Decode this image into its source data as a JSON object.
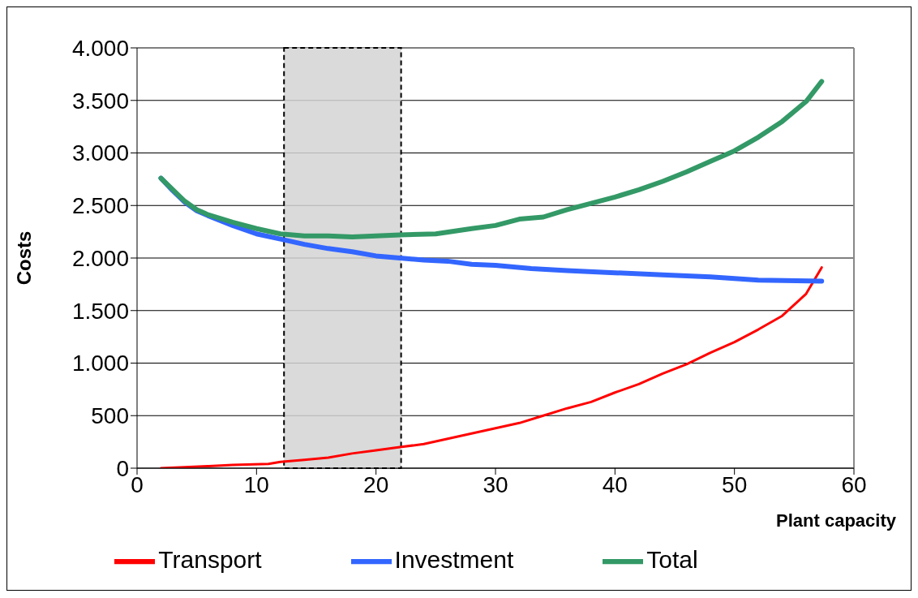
{
  "chart_data": {
    "type": "line",
    "xlabel": "Plant capacity",
    "ylabel": "Costs",
    "xlim": [
      0,
      60
    ],
    "xticks": [
      0,
      10,
      20,
      30,
      40,
      50,
      60
    ],
    "ylim": [
      0,
      4000
    ],
    "yticks": [
      {
        "value": 0,
        "label": "0"
      },
      {
        "value": 500,
        "label": "500"
      },
      {
        "value": 1000,
        "label": "1.000"
      },
      {
        "value": 1500,
        "label": "1.500"
      },
      {
        "value": 2000,
        "label": "2.000"
      },
      {
        "value": 2500,
        "label": "2.500"
      },
      {
        "value": 3000,
        "label": "3.000"
      },
      {
        "value": 3500,
        "label": "3.500"
      },
      {
        "value": 4000,
        "label": "4.000"
      }
    ],
    "grid": "y",
    "legend": "bottom",
    "marker": "none",
    "line_style": "solid",
    "bands": [
      {
        "axis": "x",
        "from": 12.3,
        "to": 22.1,
        "color": "#d4d4d4"
      }
    ],
    "series": [
      {
        "name": "Transport",
        "color": "#ff0000",
        "x": [
          2,
          4,
          6,
          8,
          11,
          12,
          14,
          16,
          18,
          20,
          22,
          24,
          26,
          28,
          30,
          32,
          34,
          36,
          38,
          40,
          42,
          44,
          46,
          48,
          50,
          52,
          54,
          56,
          57.3
        ],
        "values": [
          0,
          10,
          20,
          30,
          40,
          60,
          80,
          100,
          140,
          170,
          200,
          230,
          280,
          330,
          380,
          430,
          500,
          570,
          630,
          720,
          800,
          900,
          990,
          1100,
          1200,
          1320,
          1450,
          1660,
          1910
        ]
      },
      {
        "name": "Investment",
        "color": "#3366ff",
        "x": [
          2,
          3,
          4,
          5,
          6,
          8,
          10,
          12,
          14,
          16,
          18,
          20,
          22,
          24,
          26,
          28,
          30,
          33,
          36,
          40,
          44,
          48,
          52,
          57.3
        ],
        "values": [
          2760,
          2640,
          2530,
          2450,
          2400,
          2310,
          2230,
          2180,
          2130,
          2090,
          2060,
          2020,
          2000,
          1980,
          1970,
          1940,
          1930,
          1900,
          1880,
          1860,
          1840,
          1820,
          1790,
          1780
        ]
      },
      {
        "name": "Total",
        "color": "#339966",
        "x": [
          2,
          3,
          4,
          5,
          6,
          8,
          10,
          12,
          14,
          16,
          18,
          20,
          22,
          25,
          28,
          30,
          32,
          34,
          36,
          38,
          40,
          42,
          44,
          46,
          48,
          50,
          52,
          54,
          56,
          57.3
        ],
        "values": [
          2760,
          2650,
          2540,
          2460,
          2410,
          2340,
          2280,
          2230,
          2210,
          2210,
          2200,
          2210,
          2220,
          2230,
          2280,
          2310,
          2370,
          2390,
          2460,
          2520,
          2580,
          2650,
          2730,
          2820,
          2920,
          3020,
          3150,
          3300,
          3490,
          3680
        ]
      }
    ]
  }
}
